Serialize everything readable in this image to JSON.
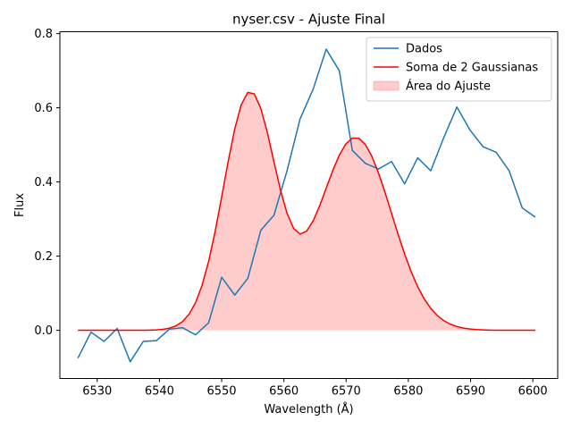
{
  "chart_data": {
    "type": "line",
    "title": "nyser.csv - Ajuste Final",
    "xlabel": "Wavelength (Å)",
    "ylabel": "Flux",
    "xlim": [
      6524.0,
      6604.0
    ],
    "ylim": [
      -0.13,
      0.805
    ],
    "xticks": [
      6530,
      6540,
      6550,
      6560,
      6570,
      6580,
      6590,
      6600
    ],
    "yticks": [
      0.0,
      0.2,
      0.4,
      0.6,
      0.8
    ],
    "xtick_labels": [
      "6530",
      "6540",
      "6550",
      "6560",
      "6570",
      "6580",
      "6590",
      "6600"
    ],
    "ytick_labels": [
      "0.0",
      "0.2",
      "0.4",
      "0.6",
      "0.8"
    ],
    "grid": false,
    "legend_position": "top-right",
    "series": [
      {
        "name": "Dados",
        "kind": "line",
        "color": "#1f77b4",
        "x": [
          6526.9,
          6529.0,
          6531.1,
          6533.2,
          6535.3,
          6537.4,
          6539.5,
          6541.6,
          6543.7,
          6545.8,
          6547.9,
          6550.0,
          6552.1,
          6554.2,
          6556.3,
          6558.4,
          6560.5,
          6562.6,
          6564.7,
          6566.8,
          6568.9,
          6571.0,
          6573.1,
          6575.2,
          6577.3,
          6579.4,
          6581.5,
          6583.6,
          6585.7,
          6587.8,
          6589.9,
          6592.0,
          6594.1,
          6596.2,
          6598.3,
          6600.4
        ],
        "y": [
          -0.075,
          -0.005,
          -0.03,
          0.005,
          -0.085,
          -0.03,
          -0.028,
          0.003,
          0.007,
          -0.012,
          0.02,
          0.143,
          0.095,
          0.14,
          0.27,
          0.31,
          0.43,
          0.57,
          0.65,
          0.758,
          0.7,
          0.485,
          0.45,
          0.435,
          0.455,
          0.395,
          0.465,
          0.43,
          0.52,
          0.602,
          0.54,
          0.495,
          0.48,
          0.43,
          0.33,
          0.305
        ],
        "y_note": "approximate reading"
      },
      {
        "name": "Soma de 2 Gaussianas",
        "kind": "line",
        "color": "#ff0000"
      },
      {
        "name": "Área do Ajuste",
        "kind": "area",
        "color": "#ff0000"
      }
    ]
  }
}
